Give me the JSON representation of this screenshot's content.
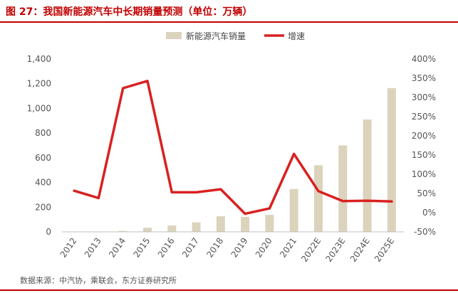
{
  "figure": {
    "title": "图 27：我国新能源汽车中长期销量预测（单位：万辆）",
    "source": "数据来源：中汽协，乘联会，东方证券研究所"
  },
  "colors": {
    "accent": "#c00000",
    "bar": "#dcd3bd",
    "line": "#d92020",
    "axis_text": "#555555"
  },
  "chart_data": {
    "type": "bar",
    "title": "",
    "categories": [
      "2012",
      "2013",
      "2014",
      "2015",
      "2016",
      "2017",
      "2018",
      "2019",
      "2020",
      "2021",
      "2022E",
      "2023E",
      "2024E",
      "2025E"
    ],
    "series": [
      {
        "name": "新能源汽车销量",
        "type": "bar",
        "axis": "left",
        "values": [
          1.3,
          1.8,
          7.5,
          33,
          51,
          77,
          126,
          121,
          137,
          347,
          540,
          700,
          910,
          1165
        ]
      },
      {
        "name": "增速",
        "type": "line",
        "axis": "right",
        "values": [
          57,
          38,
          324,
          343,
          53,
          53,
          61,
          -3,
          11,
          153,
          56,
          30,
          31,
          29
        ]
      }
    ],
    "y_left": {
      "min": 0,
      "max": 1400,
      "ticks": [
        "0",
        "200",
        "400",
        "600",
        "800",
        "1,000",
        "1,200",
        "1,400"
      ]
    },
    "y_right": {
      "min": -50,
      "max": 400,
      "ticks": [
        "-50%",
        "0%",
        "50%",
        "100%",
        "150%",
        "200%",
        "250%",
        "300%",
        "350%",
        "400%"
      ]
    },
    "legend_position": "top-center",
    "grid": false
  }
}
